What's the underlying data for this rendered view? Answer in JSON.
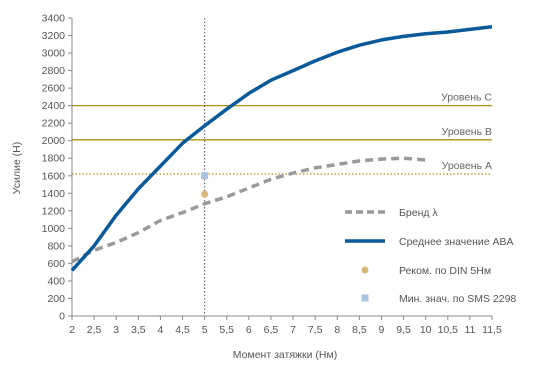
{
  "chart_data": {
    "type": "line",
    "xlabel": "Момент затяжки (Нм)",
    "ylabel": "Усилие (Н)",
    "xlim": [
      2,
      11.5
    ],
    "ylim": [
      0,
      3400
    ],
    "x_ticks": [
      "2",
      "2,5",
      "3",
      "3,5",
      "4",
      "4,5",
      "5",
      "5,5",
      "6",
      "6,5",
      "7",
      "7,5",
      "8",
      "8,5",
      "9",
      "9,5",
      "10",
      "10,5",
      "11",
      "11,5"
    ],
    "y_ticks": [
      0,
      200,
      400,
      600,
      800,
      1000,
      1200,
      1400,
      1600,
      1800,
      2000,
      2200,
      2400,
      2600,
      2800,
      3000,
      3200,
      3400
    ],
    "series": [
      {
        "name": "Бренд λ",
        "style": "dashed",
        "color": "#9a9a9a",
        "x": [
          2,
          2.5,
          3,
          3.5,
          4,
          4.5,
          5,
          5.5,
          6,
          6.5,
          7,
          7.5,
          8,
          8.5,
          9,
          9.5,
          10
        ],
        "y": [
          620,
          750,
          840,
          950,
          1090,
          1180,
          1280,
          1360,
          1460,
          1560,
          1630,
          1690,
          1730,
          1770,
          1790,
          1800,
          1780
        ]
      },
      {
        "name": "Среднее значение ABA",
        "style": "solid",
        "color": "#0a5a9a",
        "x": [
          2,
          2.5,
          3,
          3.5,
          4,
          4.5,
          5,
          5.5,
          6,
          6.5,
          7,
          7.5,
          8,
          8.5,
          9,
          9.5,
          10,
          10.5,
          11,
          11.5
        ],
        "y": [
          520,
          800,
          1150,
          1450,
          1710,
          1970,
          2170,
          2360,
          2540,
          2690,
          2800,
          2910,
          3010,
          3090,
          3150,
          3190,
          3220,
          3240,
          3270,
          3300
        ]
      }
    ],
    "points": [
      {
        "name": "Реком. по DIN 5Нм",
        "x": 5,
        "y": 1390,
        "color": "#d9b878",
        "shape": "circle"
      },
      {
        "name": "Мин. знач. по SMS 2298",
        "x": 5,
        "y": 1600,
        "color": "#a9c3e0",
        "shape": "square"
      }
    ],
    "reference_lines": [
      {
        "label": "Уровень C",
        "y": 2400,
        "color": "#b3900c",
        "style": "solid"
      },
      {
        "label": "Уровень B",
        "y": 2010,
        "color": "#b3900c",
        "style": "solid"
      },
      {
        "label": "Уровень A",
        "y": 1620,
        "color": "#b3900c",
        "style": "dotted"
      }
    ],
    "vertical_line": {
      "x": 5,
      "style": "dotted",
      "color": "#555555"
    },
    "grid": false,
    "legend_position": "bottom-right"
  }
}
